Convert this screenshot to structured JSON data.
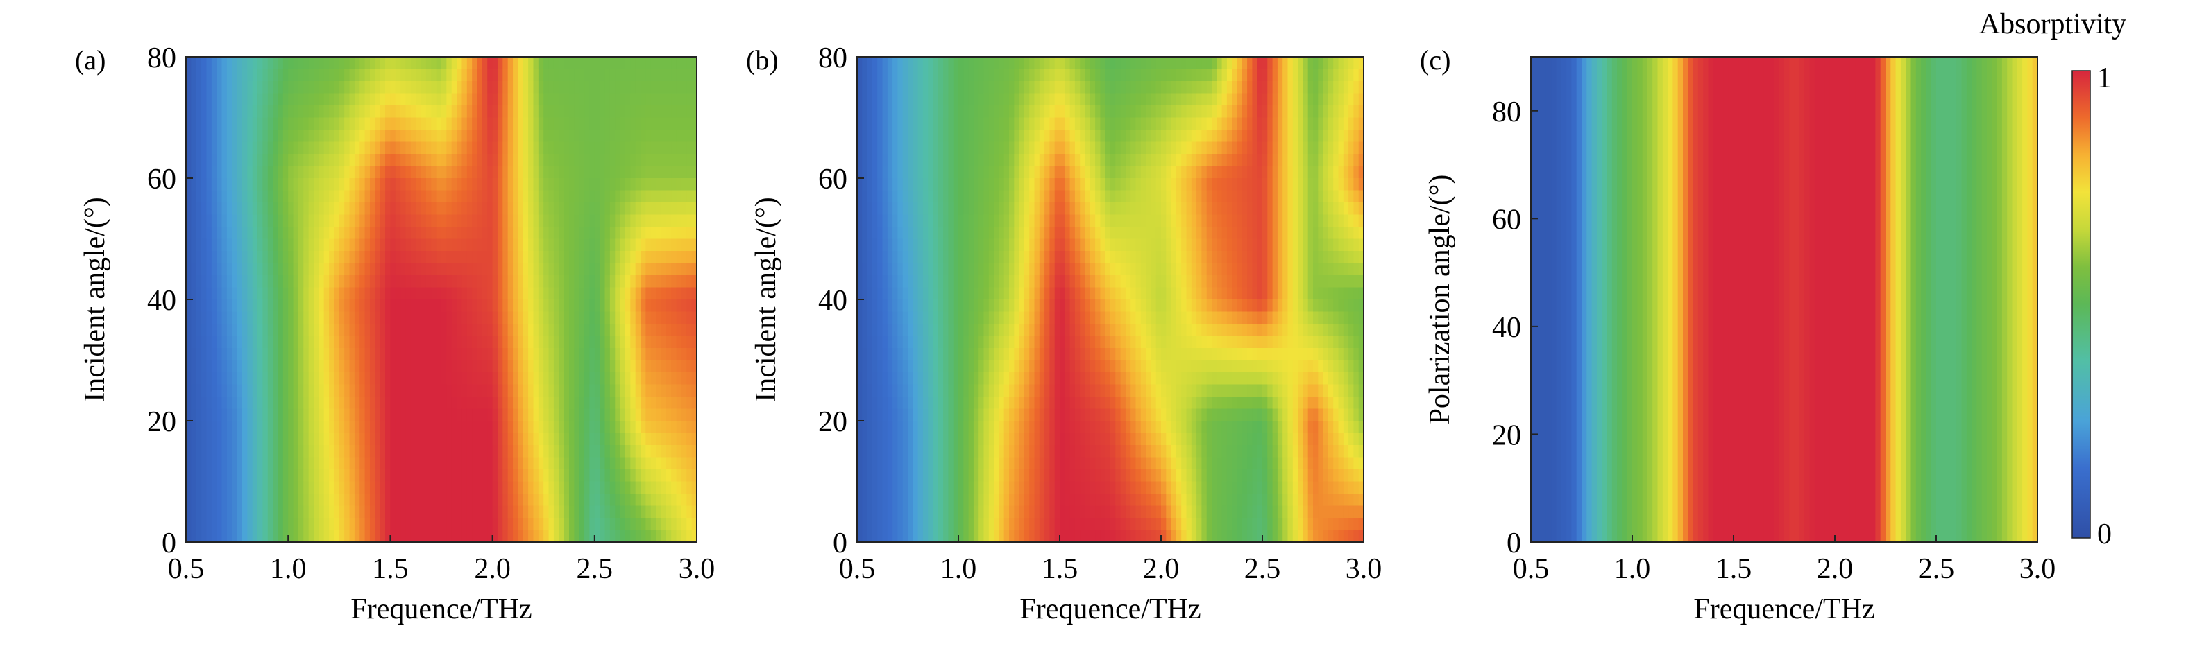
{
  "chart_data": [
    {
      "type": "heatmap",
      "panel_label": "(a)",
      "xlabel": "Frequence/THz",
      "ylabel": "Incident angle/(°)",
      "xlim": [
        0.5,
        3.0
      ],
      "ylim": [
        0,
        80
      ],
      "xticks": [
        "0.5",
        "1.0",
        "1.5",
        "2.0",
        "2.5",
        "3.0"
      ],
      "yticks": [
        "0",
        "20",
        "40",
        "60",
        "80"
      ],
      "x": [
        0.5,
        0.75,
        1.0,
        1.25,
        1.5,
        1.75,
        2.0,
        2.25,
        2.5,
        2.75,
        3.0
      ],
      "y": [
        0,
        20,
        40,
        60,
        80
      ],
      "z": [
        [
          0.05,
          0.2,
          0.55,
          0.75,
          1.0,
          1.0,
          1.0,
          0.8,
          0.4,
          0.55,
          0.75
        ],
        [
          0.05,
          0.2,
          0.55,
          0.8,
          1.0,
          1.0,
          1.0,
          0.7,
          0.45,
          0.8,
          0.85
        ],
        [
          0.05,
          0.25,
          0.55,
          0.85,
          1.0,
          1.0,
          0.95,
          0.65,
          0.5,
          0.9,
          0.95
        ],
        [
          0.05,
          0.3,
          0.6,
          0.7,
          0.95,
          0.85,
          0.95,
          0.6,
          0.55,
          0.6,
          0.6
        ],
        [
          0.05,
          0.3,
          0.5,
          0.55,
          0.65,
          0.6,
          1.0,
          0.55,
          0.55,
          0.55,
          0.55
        ]
      ]
    },
    {
      "type": "heatmap",
      "panel_label": "(b)",
      "xlabel": "Frequence/THz",
      "ylabel": "Incident angle/(°)",
      "xlim": [
        0.5,
        3.0
      ],
      "ylim": [
        0,
        80
      ],
      "xticks": [
        "0.5",
        "1.0",
        "1.5",
        "2.0",
        "2.5",
        "3.0"
      ],
      "yticks": [
        "0",
        "20",
        "40",
        "60",
        "80"
      ],
      "x": [
        0.5,
        0.75,
        1.0,
        1.25,
        1.5,
        1.75,
        2.0,
        2.25,
        2.5,
        2.75,
        3.0
      ],
      "y": [
        0,
        20,
        40,
        60,
        80
      ],
      "z": [
        [
          0.05,
          0.2,
          0.5,
          0.85,
          1.0,
          1.0,
          0.95,
          0.55,
          0.45,
          0.85,
          0.95
        ],
        [
          0.05,
          0.2,
          0.5,
          0.8,
          1.0,
          0.95,
          0.75,
          0.55,
          0.5,
          0.9,
          0.6
        ],
        [
          0.05,
          0.25,
          0.5,
          0.65,
          1.0,
          0.8,
          0.65,
          0.85,
          0.95,
          0.6,
          0.55
        ],
        [
          0.05,
          0.3,
          0.5,
          0.6,
          0.9,
          0.6,
          0.7,
          0.9,
          0.95,
          0.6,
          0.9
        ],
        [
          0.05,
          0.3,
          0.5,
          0.55,
          0.65,
          0.5,
          0.55,
          0.55,
          1.0,
          0.55,
          0.75
        ]
      ]
    },
    {
      "type": "heatmap",
      "panel_label": "(c)",
      "xlabel": "Frequence/THz",
      "ylabel": "Polarization angle/(°)",
      "xlim": [
        0.5,
        3.0
      ],
      "ylim": [
        0,
        90
      ],
      "xticks": [
        "0.5",
        "1.0",
        "1.5",
        "2.0",
        "2.5",
        "3.0"
      ],
      "yticks": [
        "0",
        "20",
        "40",
        "60",
        "80"
      ],
      "x": [
        0.5,
        0.6,
        0.7,
        0.8,
        0.9,
        1.0,
        1.1,
        1.2,
        1.3,
        1.4,
        1.5,
        1.6,
        1.7,
        1.8,
        1.9,
        2.0,
        2.1,
        2.2,
        2.3,
        2.4,
        2.5,
        2.6,
        2.7,
        2.8,
        2.9,
        3.0
      ],
      "profile": [
        0.05,
        0.05,
        0.1,
        0.3,
        0.45,
        0.55,
        0.62,
        0.75,
        0.95,
        1.0,
        1.0,
        1.0,
        1.0,
        0.97,
        1.0,
        1.0,
        1.0,
        1.0,
        0.75,
        0.55,
        0.45,
        0.45,
        0.52,
        0.58,
        0.68,
        0.8
      ],
      "colorbar": {
        "title": "Absorptivity",
        "min_label": "0",
        "max_label": "1"
      }
    }
  ]
}
